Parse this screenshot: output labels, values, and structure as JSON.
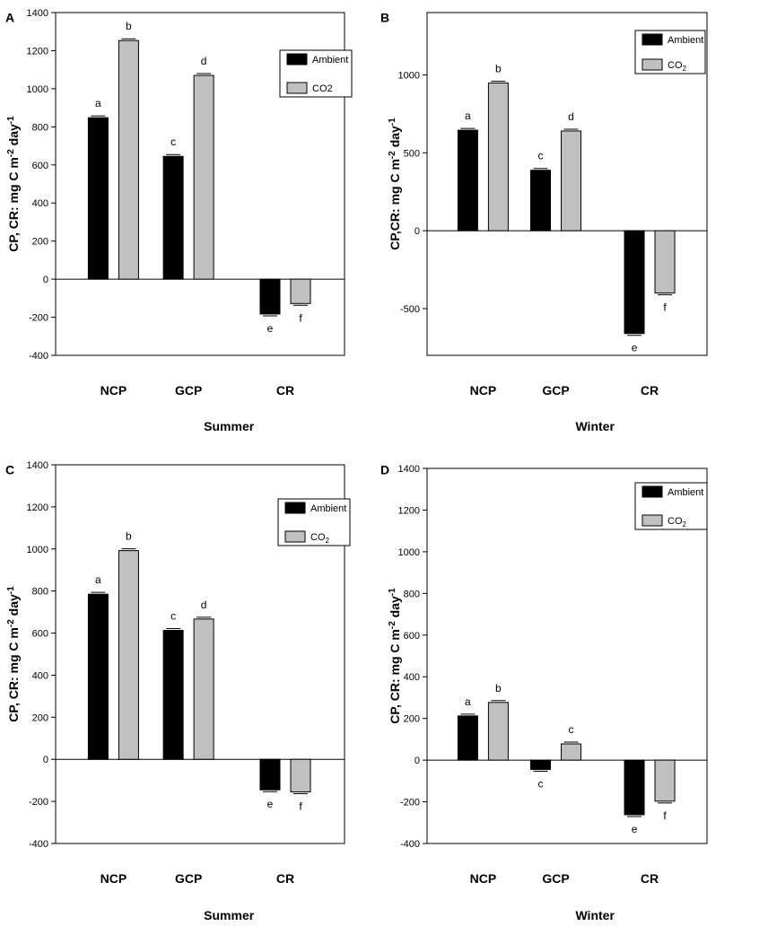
{
  "figure": {
    "series_colors": {
      "Ambient": "#000000",
      "CO2": "#c0c0c0"
    }
  },
  "chart_data": [
    {
      "panel_label": "A",
      "type": "bar",
      "title": "",
      "xlabel": "Summer",
      "ylabel": "CP, CR: mg C m",
      "ylabel_sup1": "-2",
      "ylabel_mid": " day",
      "ylabel_sup2": "-1",
      "ylim": [
        -400,
        1400
      ],
      "yticks": [
        -400,
        -200,
        0,
        200,
        400,
        600,
        800,
        1000,
        1200,
        1400
      ],
      "categories": [
        "NCP",
        "GCP",
        "CR"
      ],
      "legend": {
        "position": "top-right",
        "entries": [
          {
            "label": "Ambient",
            "sub": ""
          },
          {
            "label": "CO2",
            "sub": ""
          }
        ]
      },
      "series": [
        {
          "name": "Ambient",
          "values": [
            848,
            645,
            -183
          ],
          "letters": [
            "a",
            "c",
            "e"
          ]
        },
        {
          "name": "CO2",
          "values": [
            1253,
            1070,
            -128
          ],
          "letters": [
            "b",
            "d",
            "f"
          ]
        }
      ]
    },
    {
      "panel_label": "B",
      "type": "bar",
      "title": "",
      "xlabel": "Winter",
      "ylabel": "CP,CR: mg C m",
      "ylabel_sup1": "-2",
      "ylabel_mid": " day",
      "ylabel_sup2": "-1",
      "ylim": [
        -800,
        1400
      ],
      "yticks": [
        -500,
        0,
        500,
        1000
      ],
      "categories": [
        "NCP",
        "GCP",
        "CR"
      ],
      "legend": {
        "position": "top-right",
        "entries": [
          {
            "label": "Ambient",
            "sub": ""
          },
          {
            "label": "CO",
            "sub": "2"
          }
        ]
      },
      "series": [
        {
          "name": "Ambient",
          "values": [
            645,
            388,
            -660
          ],
          "letters": [
            "a",
            "c",
            "e"
          ]
        },
        {
          "name": "CO2",
          "values": [
            948,
            640,
            -400
          ],
          "letters": [
            "b",
            "d",
            "f"
          ]
        }
      ]
    },
    {
      "panel_label": "C",
      "type": "bar",
      "title": "",
      "xlabel": "Summer",
      "ylabel": "CP, CR: mg C m",
      "ylabel_sup1": "-2",
      "ylabel_mid": " day",
      "ylabel_sup2": "-1",
      "ylim": [
        -400,
        1400
      ],
      "yticks": [
        -400,
        -200,
        0,
        200,
        400,
        600,
        800,
        1000,
        1200,
        1400
      ],
      "categories": [
        "NCP",
        "GCP",
        "CR"
      ],
      "legend": {
        "position": "top-right",
        "entries": [
          {
            "label": "Ambient",
            "sub": ""
          },
          {
            "label": "CO",
            "sub": "2"
          }
        ]
      },
      "series": [
        {
          "name": "Ambient",
          "values": [
            785,
            613,
            -145
          ],
          "letters": [
            "a",
            "c",
            "e"
          ]
        },
        {
          "name": "CO2",
          "values": [
            992,
            667,
            -155
          ],
          "letters": [
            "b",
            "d",
            "f"
          ]
        }
      ]
    },
    {
      "panel_label": "D",
      "type": "bar",
      "title": "",
      "xlabel": "Winter",
      "ylabel": "CP, CR: mg C m",
      "ylabel_sup1": "-2",
      "ylabel_mid": " day",
      "ylabel_sup2": "-1",
      "ylim": [
        -400,
        1400
      ],
      "yticks": [
        -400,
        -200,
        0,
        200,
        400,
        600,
        800,
        1000,
        1200,
        1400
      ],
      "categories": [
        "NCP",
        "GCP",
        "CR"
      ],
      "legend": {
        "position": "top-right",
        "entries": [
          {
            "label": "Ambient",
            "sub": ""
          },
          {
            "label": "CO",
            "sub": "2"
          }
        ]
      },
      "series": [
        {
          "name": "Ambient",
          "values": [
            212,
            -45,
            -262
          ],
          "letters": [
            "a",
            "c",
            "e"
          ]
        },
        {
          "name": "CO2",
          "values": [
            277,
            78,
            -197
          ],
          "letters": [
            "b",
            "c",
            "f"
          ]
        }
      ]
    }
  ]
}
